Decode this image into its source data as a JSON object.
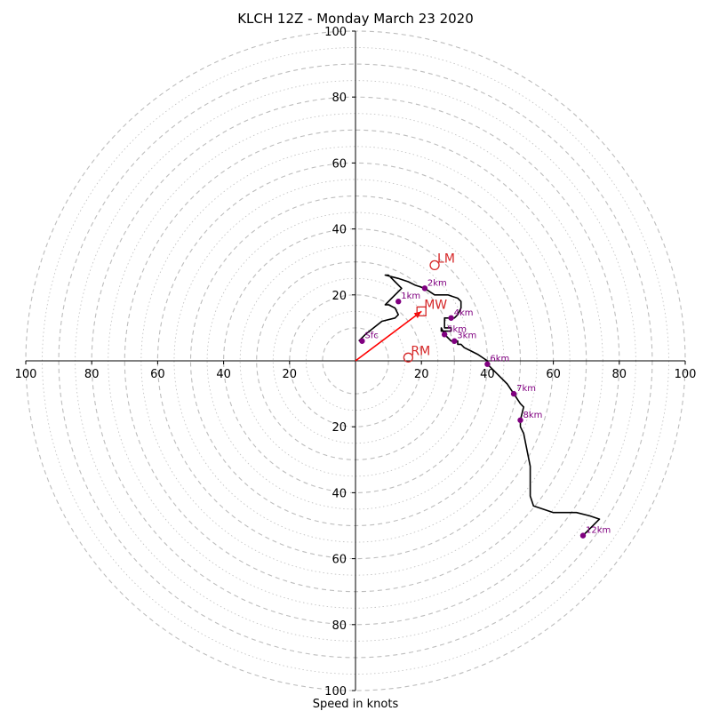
{
  "chart_data": {
    "type": "hodograph",
    "title": "KLCH 12Z - Monday March 23 2020",
    "xlabel": "Speed in knots",
    "axis_range": [
      -100,
      100
    ],
    "tick_labels": [
      "100",
      "80",
      "60",
      "40",
      "20",
      "20",
      "40",
      "60",
      "80",
      "100"
    ],
    "tick_values": [
      -100,
      -80,
      -60,
      -40,
      -20,
      20,
      40,
      60,
      80,
      100
    ],
    "ring_major": [
      10,
      20,
      30,
      40,
      50,
      60,
      70,
      80,
      90,
      100
    ],
    "ring_minor": [
      15,
      25,
      35,
      45,
      55,
      65,
      75,
      85,
      95
    ],
    "grid": true,
    "colors": {
      "trace": "#000000",
      "height_marker": "#800080",
      "motion": "#d62728",
      "grid": "#bdbdbd",
      "mean_wind_arrow": "#ff0000"
    },
    "hodograph_trace": [
      [
        1,
        6
      ],
      [
        3,
        8
      ],
      [
        8,
        12
      ],
      [
        12,
        13
      ],
      [
        13,
        14
      ],
      [
        12,
        16
      ],
      [
        10,
        17
      ],
      [
        9,
        17
      ],
      [
        11,
        19
      ],
      [
        14,
        22
      ],
      [
        12,
        24
      ],
      [
        10,
        26
      ],
      [
        10,
        26
      ],
      [
        9,
        26
      ],
      [
        13,
        25
      ],
      [
        16,
        24
      ],
      [
        18,
        23
      ],
      [
        21,
        22
      ],
      [
        24,
        20
      ],
      [
        28,
        20
      ],
      [
        31,
        19
      ],
      [
        32,
        18
      ],
      [
        32,
        16
      ],
      [
        31,
        14
      ],
      [
        30,
        13
      ],
      [
        29,
        13
      ],
      [
        27,
        13
      ],
      [
        27,
        12
      ],
      [
        27,
        10
      ],
      [
        28,
        10
      ],
      [
        29,
        10
      ],
      [
        29,
        9
      ],
      [
        28,
        9
      ],
      [
        27,
        9
      ],
      [
        26,
        9
      ],
      [
        26,
        10
      ],
      [
        27,
        8
      ],
      [
        28,
        7
      ],
      [
        29,
        6
      ],
      [
        30,
        6
      ],
      [
        31,
        6
      ],
      [
        31,
        5
      ],
      [
        32,
        5
      ],
      [
        33,
        4
      ],
      [
        35,
        3
      ],
      [
        37,
        2
      ],
      [
        40,
        0
      ],
      [
        40,
        -1
      ],
      [
        43,
        -4
      ],
      [
        46,
        -7
      ],
      [
        48,
        -10
      ],
      [
        50,
        -13
      ],
      [
        51,
        -14
      ],
      [
        50,
        -18
      ],
      [
        50,
        -20
      ],
      [
        51,
        -22
      ],
      [
        52,
        -27
      ],
      [
        53,
        -32
      ],
      [
        53,
        -37
      ],
      [
        53,
        -41
      ],
      [
        54,
        -44
      ],
      [
        57,
        -45
      ],
      [
        60,
        -46
      ],
      [
        63,
        -46
      ],
      [
        67,
        -46
      ],
      [
        71,
        -47
      ],
      [
        74,
        -48
      ],
      [
        69,
        -53
      ]
    ],
    "height_markers": [
      {
        "label": "Sfc",
        "u": 2,
        "v": 6
      },
      {
        "label": "1km",
        "u": 13,
        "v": 18
      },
      {
        "label": "2km",
        "u": 21,
        "v": 22
      },
      {
        "label": "3km",
        "u": 30,
        "v": 6
      },
      {
        "label": "4km",
        "u": 29,
        "v": 13
      },
      {
        "label": "5km",
        "u": 27,
        "v": 8
      },
      {
        "label": "6km",
        "u": 40,
        "v": -1
      },
      {
        "label": "7km",
        "u": 48,
        "v": -10
      },
      {
        "label": "8km",
        "u": 50,
        "v": -18
      },
      {
        "label": "12km",
        "u": 69,
        "v": -53
      }
    ],
    "storm_motions": [
      {
        "label": "LM",
        "u": 24,
        "v": 29,
        "shape": "circle"
      },
      {
        "label": "MW",
        "u": 20,
        "v": 15,
        "shape": "square"
      },
      {
        "label": "RM",
        "u": 16,
        "v": 1,
        "shape": "circle"
      }
    ],
    "mean_wind_arrow": {
      "from": [
        0,
        0
      ],
      "to": [
        20,
        15
      ]
    }
  }
}
